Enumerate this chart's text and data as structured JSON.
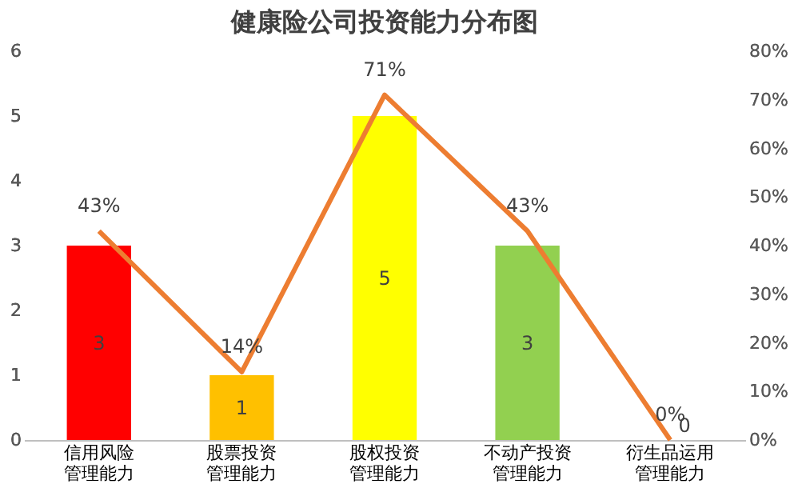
{
  "chart_data": {
    "type": "bar",
    "title": "健康险公司投资能力分布图",
    "categories": [
      "信用风险管理能力",
      "股票投资管理能力",
      "股权投资管理能力",
      "不动产投资管理能力",
      "衍生品运用管理能力"
    ],
    "series": [
      {
        "colors": [
          "#ff0000",
          "#ffc000",
          "#ffff00",
          "#92d050",
          "#5b9bd5"
        ],
        "values": [
          3,
          1,
          5,
          3,
          0
        ],
        "value_labels": [
          "3",
          "1",
          "5",
          "3",
          "0"
        ]
      },
      {
        "type": "line",
        "axis": "y2",
        "color": "#ed7d31",
        "values": [
          43,
          14,
          71,
          43,
          0
        ],
        "value_labels": [
          "43%",
          "14%",
          "71%",
          "43%",
          "0%"
        ]
      }
    ],
    "ylim": [
      0,
      6
    ],
    "yticks": [
      0,
      1,
      2,
      3,
      4,
      5,
      6
    ],
    "y2lim": [
      0,
      80
    ],
    "y2ticks": [
      {
        "value": 0,
        "label": "0%"
      },
      {
        "value": 10,
        "label": "10%"
      },
      {
        "value": 20,
        "label": "20%"
      },
      {
        "value": 30,
        "label": "30%"
      },
      {
        "value": 40,
        "label": "40%"
      },
      {
        "value": 50,
        "label": "50%"
      },
      {
        "value": 60,
        "label": "60%"
      },
      {
        "value": 70,
        "label": "70%"
      },
      {
        "value": 80,
        "label": "80%"
      }
    ],
    "grid": false,
    "legend": false,
    "marker": "none",
    "line_style": "solid"
  }
}
